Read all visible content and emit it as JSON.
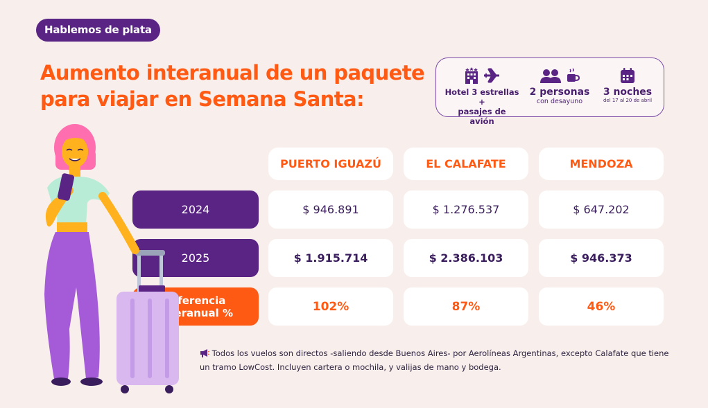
{
  "badge": "Hablemos de plata",
  "title": {
    "line1": "Aumento interanual de un paquete",
    "line2": "para viajar en Semana Santa:"
  },
  "info": {
    "hotel": {
      "line1": "Hotel 3 estrellas +",
      "line2": "pasajes de avión",
      "icons": [
        "hotel-icon",
        "airplane-icon"
      ]
    },
    "people": {
      "big": "2 personas",
      "small": "con desayuno",
      "icons": [
        "people-icon",
        "coffee-icon"
      ]
    },
    "nights": {
      "big": "3 noches",
      "small": "del 17 al 20 de abril",
      "icons": [
        "calendar-icon"
      ]
    }
  },
  "table": {
    "columns": [
      "PUERTO IGUAZÚ",
      "EL CALAFATE",
      "MENDOZA"
    ],
    "rows": [
      {
        "label": "2024",
        "values": [
          "$ 946.891",
          "$ 1.276.537",
          "$ 647.202"
        ]
      },
      {
        "label": "2025",
        "values": [
          "$ 1.915.714",
          "$ 2.386.103",
          "$ 946.373"
        ]
      },
      {
        "label_line1": "Diferencia",
        "label_line2": "Interanual %",
        "values": [
          "102%",
          "87%",
          "46%"
        ]
      }
    ]
  },
  "note": {
    "icon": "megaphone-icon",
    "line1": "Todos los vuelos son directos -saliendo desde Buenos Aires- por Aerolíneas Argentinas, excepto Calafate que tiene",
    "line2": "un tramo LowCost. Incluyen cartera o mochila, y valijas de mano y bodega."
  },
  "colors": {
    "background": "#f8efec",
    "purple": "#5a2484",
    "orange": "#ff5a14",
    "lavender": "#d9b8f0"
  }
}
